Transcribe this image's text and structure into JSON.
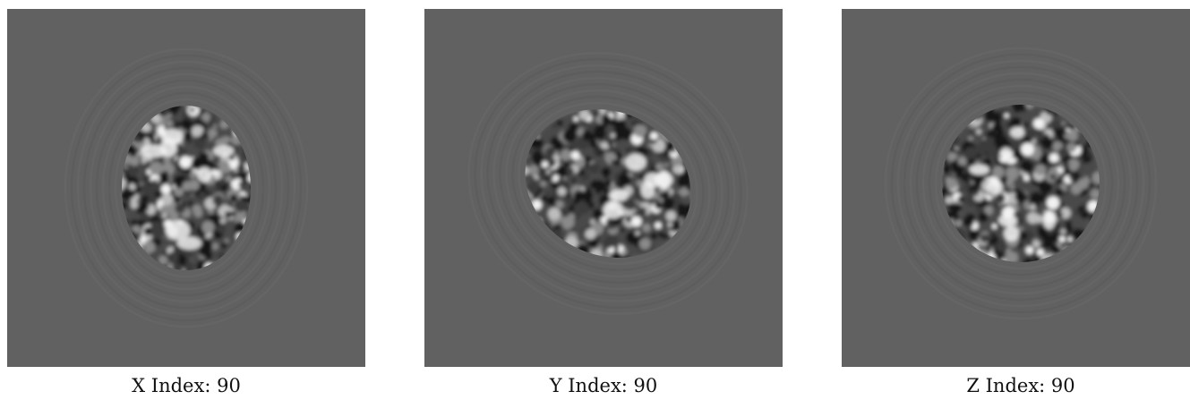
{
  "panels": [
    {
      "id": "x",
      "caption": "X Index: 90"
    },
    {
      "id": "y",
      "caption": "Y Index: 90"
    },
    {
      "id": "z",
      "caption": "Z Index: 90"
    }
  ],
  "colors": {
    "background": "#616161",
    "bright": "#f2f2f2",
    "dark": "#151515"
  }
}
